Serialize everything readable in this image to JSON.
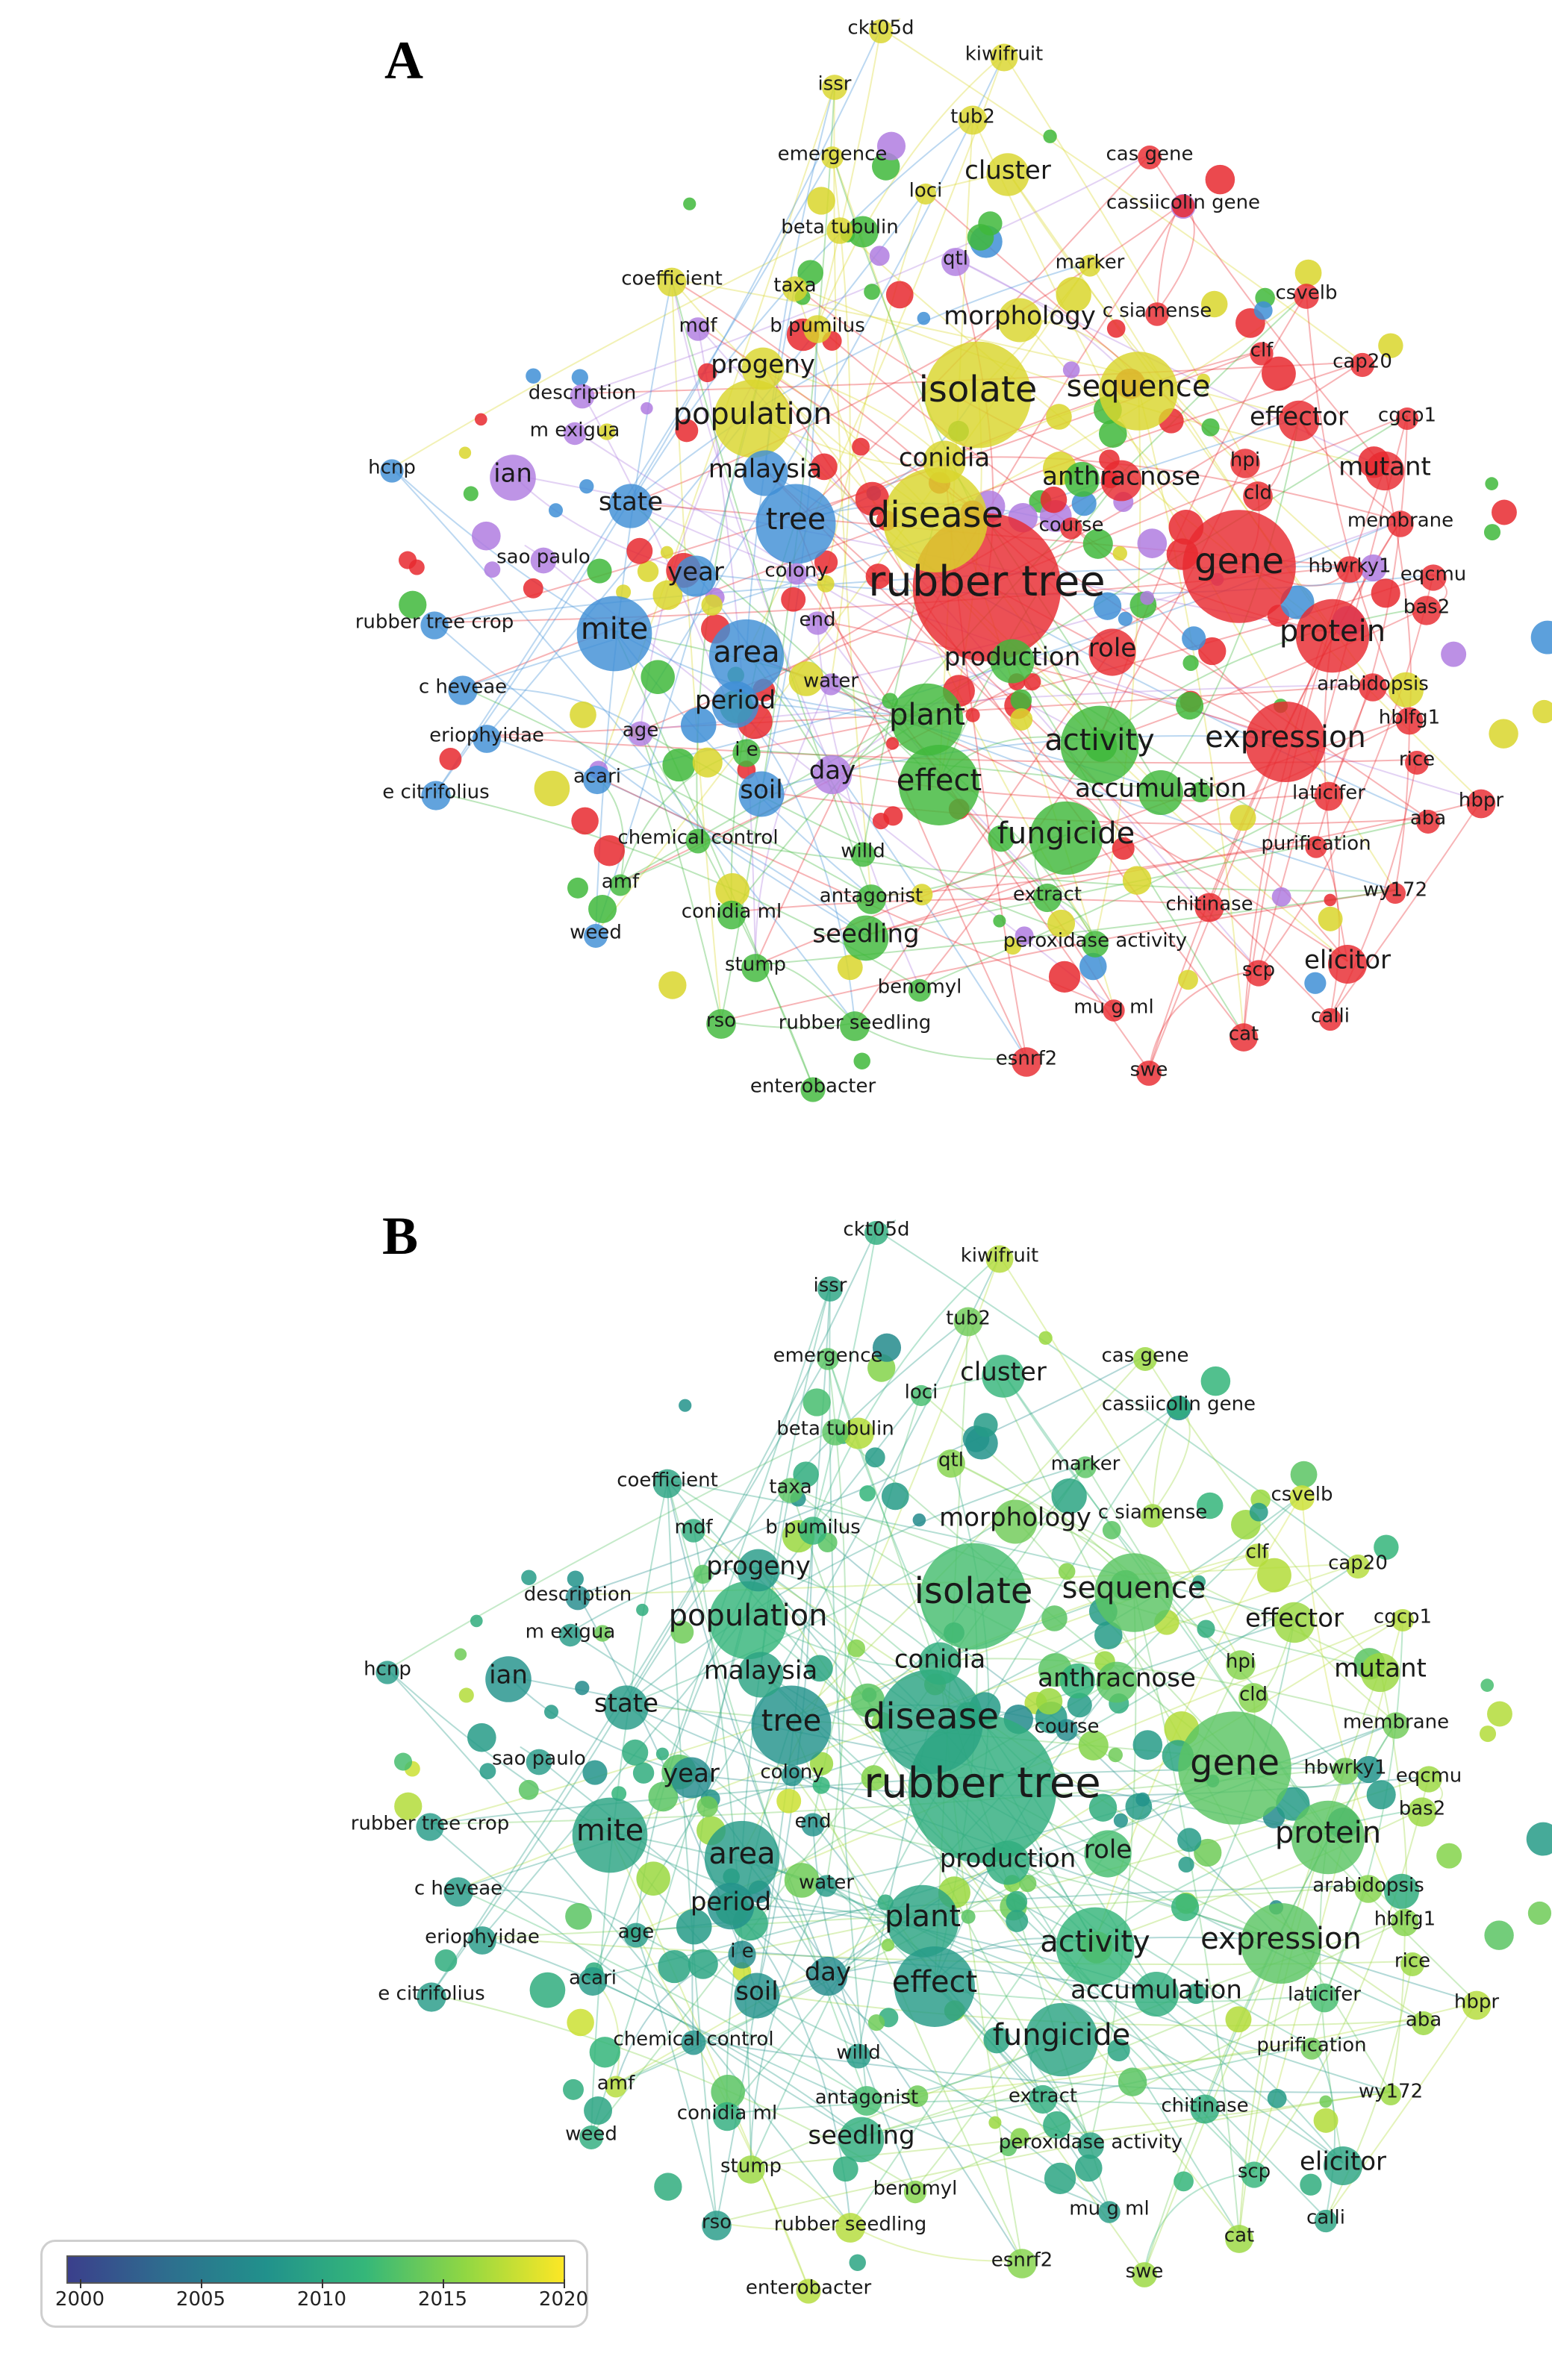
{
  "panels": {
    "a": {
      "letter": "A"
    },
    "b": {
      "letter": "B"
    }
  },
  "cluster_colors": {
    "red": "#e8292f",
    "green": "#3fb83b",
    "blue": "#3f8fd6",
    "yellow": "#d9d62c",
    "purple": "#b07de0"
  },
  "keywords": [
    {
      "label": "ckt05d",
      "cluster": "yellow",
      "weight": 1,
      "year": 2012
    },
    {
      "label": "kiwifruit",
      "cluster": "yellow",
      "weight": 1,
      "year": 2019
    },
    {
      "label": "issr",
      "cluster": "yellow",
      "weight": 1,
      "year": 2011
    },
    {
      "label": "tub2",
      "cluster": "yellow",
      "weight": 1,
      "year": 2016
    },
    {
      "label": "emergence",
      "cluster": "yellow",
      "weight": 1,
      "year": 2015
    },
    {
      "label": "cas gene",
      "cluster": "red",
      "weight": 1,
      "year": 2018
    },
    {
      "label": "cluster",
      "cluster": "yellow",
      "weight": 2,
      "year": 2013
    },
    {
      "label": "loci",
      "cluster": "yellow",
      "weight": 1,
      "year": 2014
    },
    {
      "label": "cassiicolin gene",
      "cluster": "red",
      "weight": 1,
      "year": 2012
    },
    {
      "label": "beta tubulin",
      "cluster": "yellow",
      "weight": 1,
      "year": 2015
    },
    {
      "label": "qtl",
      "cluster": "purple",
      "weight": 1,
      "year": 2017
    },
    {
      "label": "marker",
      "cluster": "yellow",
      "weight": 1,
      "year": 2015
    },
    {
      "label": "coefficient",
      "cluster": "yellow",
      "weight": 1,
      "year": 2011
    },
    {
      "label": "taxa",
      "cluster": "yellow",
      "weight": 1,
      "year": 2015
    },
    {
      "label": "c siamense",
      "cluster": "red",
      "weight": 1,
      "year": 2018
    },
    {
      "label": "csvelb",
      "cluster": "red",
      "weight": 1,
      "year": 2020
    },
    {
      "label": "mdf",
      "cluster": "purple",
      "weight": 1,
      "year": 2012
    },
    {
      "label": "b pumilus",
      "cluster": "yellow",
      "weight": 1,
      "year": 2013
    },
    {
      "label": "morphology",
      "cluster": "yellow",
      "weight": 2,
      "year": 2016
    },
    {
      "label": "clf",
      "cluster": "red",
      "weight": 1,
      "year": 2019
    },
    {
      "label": "progeny",
      "cluster": "yellow",
      "weight": 2,
      "year": 2010
    },
    {
      "label": "cap20",
      "cluster": "red",
      "weight": 1,
      "year": 2019
    },
    {
      "label": "description",
      "cluster": "purple",
      "weight": 1,
      "year": 2008
    },
    {
      "label": "isolate",
      "cluster": "yellow",
      "weight": 4,
      "year": 2014
    },
    {
      "label": "sequence",
      "cluster": "yellow",
      "weight": 3,
      "year": 2015
    },
    {
      "label": "effector",
      "cluster": "red",
      "weight": 2,
      "year": 2018
    },
    {
      "label": "cgcp1",
      "cluster": "red",
      "weight": 1,
      "year": 2019
    },
    {
      "label": "population",
      "cluster": "yellow",
      "weight": 3,
      "year": 2013
    },
    {
      "label": "m exigua",
      "cluster": "purple",
      "weight": 1,
      "year": 2010
    },
    {
      "label": "hcnp",
      "cluster": "blue",
      "weight": 1,
      "year": 2010
    },
    {
      "label": "ian",
      "cluster": "purple",
      "weight": 2,
      "year": 2009
    },
    {
      "label": "malaysia",
      "cluster": "blue",
      "weight": 2,
      "year": 2011
    },
    {
      "label": "conidia",
      "cluster": "yellow",
      "weight": 2,
      "year": 2012
    },
    {
      "label": "hpi",
      "cluster": "red",
      "weight": 1,
      "year": 2017
    },
    {
      "label": "mutant",
      "cluster": "red",
      "weight": 2,
      "year": 2018
    },
    {
      "label": "state",
      "cluster": "blue",
      "weight": 2,
      "year": 2010
    },
    {
      "label": "anthracnose",
      "cluster": "red",
      "weight": 2,
      "year": 2015
    },
    {
      "label": "cld",
      "cluster": "red",
      "weight": 1,
      "year": 2017
    },
    {
      "label": "tree",
      "cluster": "blue",
      "weight": 3,
      "year": 2009
    },
    {
      "label": "disease",
      "cluster": "yellow",
      "weight": 4,
      "year": 2011
    },
    {
      "label": "course",
      "cluster": "red",
      "weight": 1,
      "year": 2008
    },
    {
      "label": "membrane",
      "cluster": "red",
      "weight": 1,
      "year": 2016
    },
    {
      "label": "sao paulo",
      "cluster": "purple",
      "weight": 1,
      "year": 2010
    },
    {
      "label": "gene",
      "cluster": "red",
      "weight": 4,
      "year": 2015
    },
    {
      "label": "hbwrky1",
      "cluster": "red",
      "weight": 1,
      "year": 2016
    },
    {
      "label": "eqcmu",
      "cluster": "red",
      "weight": 1,
      "year": 2018
    },
    {
      "label": "year",
      "cluster": "blue",
      "weight": 2,
      "year": 2008
    },
    {
      "label": "colony",
      "cluster": "purple",
      "weight": 1,
      "year": 2009
    },
    {
      "label": "rubber tree",
      "cluster": "red",
      "weight": 5,
      "year": 2012
    },
    {
      "label": "bas2",
      "cluster": "red",
      "weight": 1,
      "year": 2018
    },
    {
      "label": "rubber tree crop",
      "cluster": "blue",
      "weight": 1,
      "year": 2010
    },
    {
      "label": "mite",
      "cluster": "blue",
      "weight": 3,
      "year": 2011
    },
    {
      "label": "end",
      "cluster": "purple",
      "weight": 1,
      "year": 2009
    },
    {
      "label": "protein",
      "cluster": "red",
      "weight": 3,
      "year": 2015
    },
    {
      "label": "role",
      "cluster": "red",
      "weight": 2,
      "year": 2014
    },
    {
      "label": "area",
      "cluster": "blue",
      "weight": 3,
      "year": 2010
    },
    {
      "label": "production",
      "cluster": "green",
      "weight": 2,
      "year": 2012
    },
    {
      "label": "arabidopsis",
      "cluster": "red",
      "weight": 1,
      "year": 2017
    },
    {
      "label": "c heveae",
      "cluster": "blue",
      "weight": 1,
      "year": 2010
    },
    {
      "label": "water",
      "cluster": "purple",
      "weight": 1,
      "year": 2010
    },
    {
      "label": "plant",
      "cluster": "green",
      "weight": 3,
      "year": 2011
    },
    {
      "label": "hblfg1",
      "cluster": "red",
      "weight": 1,
      "year": 2017
    },
    {
      "label": "period",
      "cluster": "blue",
      "weight": 2,
      "year": 2009
    },
    {
      "label": "eriophyidae",
      "cluster": "blue",
      "weight": 1,
      "year": 2010
    },
    {
      "label": "age",
      "cluster": "purple",
      "weight": 1,
      "year": 2010
    },
    {
      "label": "activity",
      "cluster": "green",
      "weight": 3,
      "year": 2013
    },
    {
      "label": "expression",
      "cluster": "red",
      "weight": 3,
      "year": 2015
    },
    {
      "label": "rice",
      "cluster": "red",
      "weight": 1,
      "year": 2018
    },
    {
      "label": "i e",
      "cluster": "green",
      "weight": 1,
      "year": 2008
    },
    {
      "label": "day",
      "cluster": "purple",
      "weight": 2,
      "year": 2008
    },
    {
      "label": "effect",
      "cluster": "green",
      "weight": 3,
      "year": 2010
    },
    {
      "label": "e citrifolius",
      "cluster": "blue",
      "weight": 1,
      "year": 2010
    },
    {
      "label": "acari",
      "cluster": "blue",
      "weight": 1,
      "year": 2010
    },
    {
      "label": "soil",
      "cluster": "blue",
      "weight": 2,
      "year": 2009
    },
    {
      "label": "accumulation",
      "cluster": "green",
      "weight": 2,
      "year": 2012
    },
    {
      "label": "laticifer",
      "cluster": "red",
      "weight": 1,
      "year": 2014
    },
    {
      "label": "hbpr",
      "cluster": "red",
      "weight": 1,
      "year": 2019
    },
    {
      "label": "aba",
      "cluster": "red",
      "weight": 1,
      "year": 2018
    },
    {
      "label": "fungicide",
      "cluster": "green",
      "weight": 3,
      "year": 2011
    },
    {
      "label": "chemical control",
      "cluster": "green",
      "weight": 1,
      "year": 2009
    },
    {
      "label": "purification",
      "cluster": "red",
      "weight": 1,
      "year": 2016
    },
    {
      "label": "willd",
      "cluster": "green",
      "weight": 1,
      "year": 2010
    },
    {
      "label": "amf",
      "cluster": "green",
      "weight": 1,
      "year": 2019
    },
    {
      "label": "wy172",
      "cluster": "red",
      "weight": 1,
      "year": 2018
    },
    {
      "label": "antagonist",
      "cluster": "green",
      "weight": 1,
      "year": 2014
    },
    {
      "label": "extract",
      "cluster": "green",
      "weight": 1,
      "year": 2012
    },
    {
      "label": "conidia ml",
      "cluster": "green",
      "weight": 1,
      "year": 2012
    },
    {
      "label": "chitinase",
      "cluster": "red",
      "weight": 1,
      "year": 2012
    },
    {
      "label": "weed",
      "cluster": "blue",
      "weight": 1,
      "year": 2012
    },
    {
      "label": "seedling",
      "cluster": "green",
      "weight": 2,
      "year": 2012
    },
    {
      "label": "peroxidase activity",
      "cluster": "green",
      "weight": 1,
      "year": 2011
    },
    {
      "label": "scp",
      "cluster": "red",
      "weight": 1,
      "year": 2013
    },
    {
      "label": "elicitor",
      "cluster": "red",
      "weight": 2,
      "year": 2011
    },
    {
      "label": "stump",
      "cluster": "green",
      "weight": 1,
      "year": 2018
    },
    {
      "label": "benomyl",
      "cluster": "green",
      "weight": 1,
      "year": 2017
    },
    {
      "label": "mu g ml",
      "cluster": "red",
      "weight": 1,
      "year": 2010
    },
    {
      "label": "rso",
      "cluster": "green",
      "weight": 1,
      "year": 2010
    },
    {
      "label": "rubber seedling",
      "cluster": "green",
      "weight": 1,
      "year": 2019
    },
    {
      "label": "cat",
      "cluster": "red",
      "weight": 1,
      "year": 2018
    },
    {
      "label": "calli",
      "cluster": "red",
      "weight": 1,
      "year": 2011
    },
    {
      "label": "esnrf2",
      "cluster": "red",
      "weight": 1,
      "year": 2017
    },
    {
      "label": "enterobacter",
      "cluster": "green",
      "weight": 1,
      "year": 2019
    },
    {
      "label": "swe",
      "cluster": "red",
      "weight": 1,
      "year": 2018
    }
  ],
  "legend": {
    "colorscale": [
      "#3b3f8c",
      "#2e6e8e",
      "#21918c",
      "#35b779",
      "#90d743",
      "#fde725"
    ],
    "ticks": [
      "2000",
      "2005",
      "2010",
      "2015",
      "2020"
    ]
  }
}
